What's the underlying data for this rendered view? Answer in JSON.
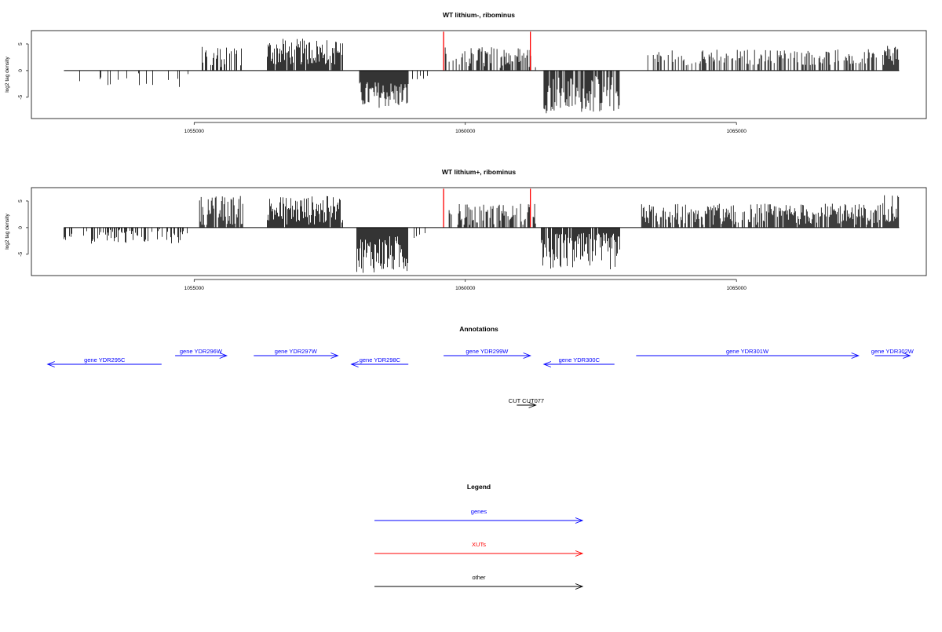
{
  "colors": {
    "genes": "#0000ff",
    "xuts": "#ff0000",
    "other": "#000000",
    "density": "#000000"
  },
  "chart_data": [
    {
      "type": "bar",
      "title": "WT lithium-, ribominus",
      "ylabel": "log2 tag density",
      "xlim": [
        1052000,
        1068500
      ],
      "ylim": [
        -9,
        7.5
      ],
      "yticks": [
        "5",
        "0",
        "-5"
      ],
      "ytick_values": [
        5,
        0,
        -5
      ],
      "xticks": [
        "1055000",
        "1060000",
        "1065000"
      ],
      "xtick_values": [
        1055000,
        1060000,
        1065000
      ],
      "xut_markers": [
        1059600,
        1061200
      ],
      "segments": [
        {
          "start": 1052600,
          "end": 1054900,
          "min": -3.5,
          "max": -0.3,
          "density": 0.12
        },
        {
          "start": 1055150,
          "end": 1055900,
          "min": 0.5,
          "max": 4.5,
          "density": 0.5
        },
        {
          "start": 1056350,
          "end": 1057750,
          "min": 1.0,
          "max": 6.0,
          "density": 0.9
        },
        {
          "start": 1058050,
          "end": 1058950,
          "min": -7.0,
          "max": -2.0,
          "density": 1.0
        },
        {
          "start": 1059000,
          "end": 1059350,
          "min": -2.0,
          "max": -0.5,
          "density": 0.3
        },
        {
          "start": 1059600,
          "end": 1061300,
          "min": 0.5,
          "max": 4.5,
          "density": 0.55
        },
        {
          "start": 1061450,
          "end": 1062850,
          "min": -8.0,
          "max": -1.0,
          "density": 0.8
        },
        {
          "start": 1063350,
          "end": 1067650,
          "min": 1.0,
          "max": 4.0,
          "density": 0.45
        },
        {
          "start": 1067700,
          "end": 1068000,
          "min": 1.0,
          "max": 5.0,
          "density": 1.0
        }
      ]
    },
    {
      "type": "bar",
      "title": "WT lithium+, ribominus",
      "ylabel": "log2 tag density",
      "xlim": [
        1052000,
        1068500
      ],
      "ylim": [
        -9,
        7.5
      ],
      "yticks": [
        "5",
        "0",
        "-5"
      ],
      "ytick_values": [
        5,
        0,
        -5
      ],
      "xticks": [
        "1055000",
        "1060000",
        "1065000"
      ],
      "xtick_values": [
        1055000,
        1060000,
        1065000
      ],
      "xut_markers": [
        1059600,
        1061200
      ],
      "segments": [
        {
          "start": 1052600,
          "end": 1054900,
          "min": -3.0,
          "max": -0.3,
          "density": 0.35
        },
        {
          "start": 1055100,
          "end": 1055900,
          "min": 0.5,
          "max": 6.0,
          "density": 0.8
        },
        {
          "start": 1056350,
          "end": 1057750,
          "min": 0.5,
          "max": 6.0,
          "density": 0.95
        },
        {
          "start": 1058000,
          "end": 1058950,
          "min": -8.5,
          "max": -1.5,
          "density": 1.0
        },
        {
          "start": 1059000,
          "end": 1059300,
          "min": -2.0,
          "max": -0.5,
          "density": 0.3
        },
        {
          "start": 1059600,
          "end": 1061300,
          "min": 0.5,
          "max": 4.5,
          "density": 0.6
        },
        {
          "start": 1061400,
          "end": 1062850,
          "min": -8.0,
          "max": -1.0,
          "density": 0.9
        },
        {
          "start": 1063250,
          "end": 1067650,
          "min": 0.5,
          "max": 4.5,
          "density": 0.8
        },
        {
          "start": 1067700,
          "end": 1068000,
          "min": 1.0,
          "max": 6.5,
          "density": 1.0
        }
      ]
    }
  ],
  "annotations": {
    "title": "Annotations",
    "xlim": [
      1052000,
      1068500
    ],
    "features": [
      {
        "label": "gene YDR295C",
        "start": 1052300,
        "end": 1054400,
        "strand": "-",
        "row": 1,
        "kind": "genes"
      },
      {
        "label": "gene YDR296W",
        "start": 1054650,
        "end": 1055600,
        "strand": "+",
        "row": 0,
        "kind": "genes"
      },
      {
        "label": "gene YDR297W",
        "start": 1056100,
        "end": 1057650,
        "strand": "+",
        "row": 0,
        "kind": "genes"
      },
      {
        "label": "gene YDR298C",
        "start": 1057900,
        "end": 1058950,
        "strand": "-",
        "row": 1,
        "kind": "genes"
      },
      {
        "label": "gene YDR299W",
        "start": 1059600,
        "end": 1061200,
        "strand": "+",
        "row": 0,
        "kind": "genes"
      },
      {
        "label": "gene YDR300C",
        "start": 1061450,
        "end": 1062750,
        "strand": "-",
        "row": 1,
        "kind": "genes"
      },
      {
        "label": "gene YDR301W",
        "start": 1063150,
        "end": 1067250,
        "strand": "+",
        "row": 0,
        "kind": "genes"
      },
      {
        "label": "gene YDR302W",
        "start": 1067550,
        "end": 1068200,
        "strand": "+",
        "row": 0,
        "kind": "genes"
      },
      {
        "label": "CUT CUT077",
        "start": 1060950,
        "end": 1061300,
        "strand": "+",
        "row": 2,
        "kind": "other"
      }
    ]
  },
  "legend": {
    "title": "Legend",
    "items": [
      {
        "label": "genes",
        "kind": "genes"
      },
      {
        "label": "XUTs",
        "kind": "xuts"
      },
      {
        "label": "other",
        "kind": "other"
      }
    ]
  }
}
